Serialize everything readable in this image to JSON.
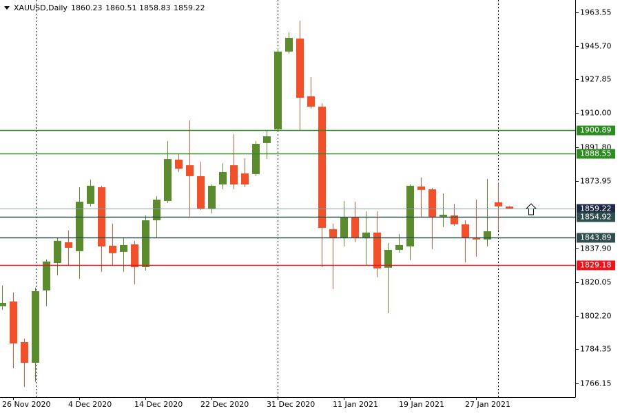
{
  "chart_data": {
    "type": "candlestick",
    "title": "XAUUSD,Daily",
    "categories": [
      null,
      "26 Nov 2020",
      null,
      null,
      null,
      null,
      null,
      "4 Dec 2020",
      null,
      null,
      null,
      null,
      null,
      "14 Dec 2020",
      null,
      null,
      null,
      null,
      null,
      "22 Dec 2020",
      null,
      null,
      null,
      null,
      null,
      "31 Dec 2020",
      null,
      null,
      null,
      null,
      null,
      "11 Jan 2021",
      null,
      null,
      null,
      null,
      null,
      "19 Jan 2021",
      null,
      null,
      null,
      null,
      null,
      "27 Jan 2021",
      null,
      null,
      null
    ],
    "open": [
      1807.2,
      1809.7,
      1788.1,
      1777.1,
      1815.6,
      1830.2,
      1841.2,
      1836.5,
      1861.7,
      1870.5,
      1839.4,
      1836.1,
      1840.1,
      1828.0,
      1852.9,
      1863.2,
      1885.2,
      1882.2,
      1876.4,
      1859.2,
      1872.0,
      1882.2,
      1877.9,
      1877.5,
      1894.0,
      1901.3,
      1942.7,
      1949.6,
      1918.9,
      1913.4,
      1848.2,
      1843.4,
      1854.4,
      1843.8,
      1846.4,
      1827.7,
      1837.2,
      1839.0,
      1870.9,
      1869.4,
      1854.8,
      1855.5,
      1850.8,
      1843.8,
      1842.7,
      1862.5,
      1860.23
    ],
    "high": [
      1818.2,
      1814.5,
      1790.0,
      1817.1,
      1832.1,
      1843.8,
      1847.5,
      1870.5,
      1874.6,
      1871.3,
      1851.1,
      1843.8,
      1842.0,
      1855.5,
      1865.8,
      1895.1,
      1888.5,
      1906.1,
      1884.1,
      1872.0,
      1883.3,
      1898.7,
      1885.9,
      1895.1,
      1900.6,
      1944.5,
      1952.9,
      1959.2,
      1929.1,
      1915.2,
      1851.1,
      1863.2,
      1862.8,
      1857.7,
      1857.7,
      1840.9,
      1845.6,
      1872.0,
      1875.7,
      1870.2,
      1867.2,
      1861.7,
      1852.9,
      1863.9,
      1874.9,
      1873.1,
      1860.51
    ],
    "low": [
      1805.3,
      1774.2,
      1764.3,
      1766.9,
      1807.2,
      1823.6,
      1829.1,
      1821.8,
      1860.3,
      1825.5,
      1829.1,
      1825.5,
      1818.9,
      1826.2,
      1843.8,
      1862.1,
      1878.6,
      1854.8,
      1858.4,
      1856.6,
      1869.4,
      1869.4,
      1870.5,
      1876.4,
      1885.5,
      1900.6,
      1941.6,
      1900.6,
      1912.3,
      1828.0,
      1816.3,
      1839.0,
      1841.2,
      1829.1,
      1822.6,
      1803.5,
      1835.7,
      1831.7,
      1854.8,
      1837.6,
      1849.3,
      1850.0,
      1830.6,
      1833.5,
      1839.0,
      1847.5,
      1858.83
    ],
    "close": [
      1809.0,
      1787.4,
      1777.1,
      1815.2,
      1831.0,
      1842.0,
      1838.3,
      1862.8,
      1871.3,
      1839.0,
      1835.4,
      1839.8,
      1828.0,
      1852.9,
      1863.9,
      1885.5,
      1880.4,
      1876.4,
      1859.2,
      1871.3,
      1878.6,
      1872.0,
      1872.0,
      1893.6,
      1897.6,
      1942.7,
      1950.0,
      1918.1,
      1913.4,
      1848.9,
      1843.8,
      1854.4,
      1843.8,
      1846.4,
      1827.3,
      1837.2,
      1839.8,
      1871.3,
      1869.1,
      1854.4,
      1855.9,
      1850.8,
      1843.4,
      1842.7,
      1847.1,
      1860.3,
      1859.22
    ],
    "up_color": "#5b8a2f",
    "down_color": "#f0502a",
    "ylim": [
      1758.8,
      1970.14
    ],
    "yticks": [
      {
        "value": 1963.55,
        "label": "1963.55"
      },
      {
        "value": 1945.7,
        "label": "1945.70"
      },
      {
        "value": 1927.85,
        "label": "1927.85"
      },
      {
        "value": 1910.0,
        "label": "1910.00"
      },
      {
        "value": 1891.8,
        "label": "1891.80"
      },
      {
        "value": 1873.95,
        "label": "1873.95"
      },
      {
        "value": 1837.9,
        "label": "1837.90"
      },
      {
        "value": 1820.05,
        "label": "1820.05"
      },
      {
        "value": 1802.2,
        "label": "1802.20"
      },
      {
        "value": 1784.35,
        "label": "1784.35"
      },
      {
        "value": 1766.15,
        "label": "1766.15"
      }
    ],
    "levels": [
      {
        "value": 1900.89,
        "color": "#2e8b22"
      },
      {
        "value": 1888.55,
        "color": "#2e8b22"
      },
      {
        "value": 1859.22,
        "color": "#1c2a44"
      },
      {
        "value": 1854.92,
        "color": "#2f4f4f"
      },
      {
        "value": 1843.89,
        "color": "#2f4f4f"
      },
      {
        "value": 1829.18,
        "color": "#e8141e"
      }
    ]
  }
}
